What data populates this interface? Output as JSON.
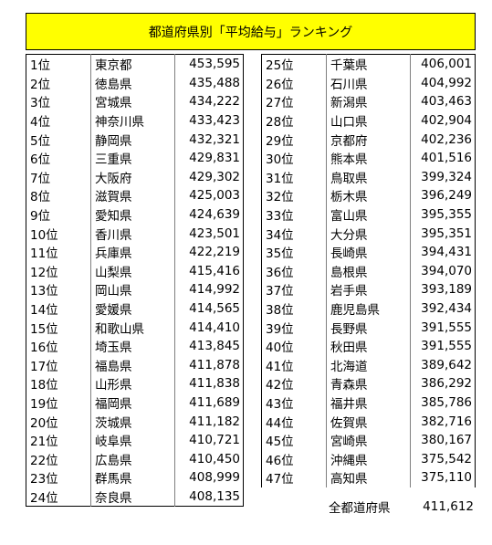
{
  "title": "都道府県別「平均給与」ランキング",
  "left_rows": [
    [
      "1位",
      "東京都",
      "453,595"
    ],
    [
      "2位",
      "徳島県",
      "435,488"
    ],
    [
      "3位",
      "宮城県",
      "434,222"
    ],
    [
      "4位",
      "神奈川県",
      "433,423"
    ],
    [
      "5位",
      "静岡県",
      "432,321"
    ],
    [
      "6位",
      "三重県",
      "429,831"
    ],
    [
      "7位",
      "大阪府",
      "429,302"
    ],
    [
      "8位",
      "滋賀県",
      "425,003"
    ],
    [
      "9位",
      "愛知県",
      "424,639"
    ],
    [
      "10位",
      "香川県",
      "423,501"
    ],
    [
      "11位",
      "兵庫県",
      "422,219"
    ],
    [
      "12位",
      "山梨県",
      "415,416"
    ],
    [
      "13位",
      "岡山県",
      "414,992"
    ],
    [
      "14位",
      "愛媛県",
      "414,565"
    ],
    [
      "15位",
      "和歌山県",
      "414,410"
    ],
    [
      "16位",
      "埼玉県",
      "413,845"
    ],
    [
      "17位",
      "福島県",
      "411,878"
    ],
    [
      "18位",
      "山形県",
      "411,838"
    ],
    [
      "19位",
      "福岡県",
      "411,689"
    ],
    [
      "20位",
      "茨城県",
      "411,182"
    ],
    [
      "21位",
      "岐阜県",
      "410,721"
    ],
    [
      "22位",
      "広島県",
      "410,450"
    ],
    [
      "23位",
      "群馬県",
      "408,999"
    ],
    [
      "24位",
      "奈良県",
      "408,135"
    ]
  ],
  "right_rows": [
    [
      "25位",
      "千葉県",
      "406,001"
    ],
    [
      "26位",
      "石川県",
      "404,992"
    ],
    [
      "27位",
      "新潟県",
      "403,463"
    ],
    [
      "28位",
      "山口県",
      "402,904"
    ],
    [
      "29位",
      "京都府",
      "402,236"
    ],
    [
      "30位",
      "熊本県",
      "401,516"
    ],
    [
      "31位",
      "鳥取県",
      "399,324"
    ],
    [
      "32位",
      "栃木県",
      "396,249"
    ],
    [
      "33位",
      "富山県",
      "395,355"
    ],
    [
      "34位",
      "大分県",
      "395,351"
    ],
    [
      "35位",
      "長崎県",
      "394,431"
    ],
    [
      "36位",
      "島根県",
      "394,070"
    ],
    [
      "37位",
      "岩手県",
      "393,189"
    ],
    [
      "38位",
      "鹿児島県",
      "392,434"
    ],
    [
      "39位",
      "長野県",
      "391,555"
    ],
    [
      "40位",
      "秋田県",
      "391,555"
    ],
    [
      "41位",
      "北海道",
      "389,642"
    ],
    [
      "42位",
      "青森県",
      "386,292"
    ],
    [
      "43位",
      "福井県",
      "385,786"
    ],
    [
      "44位",
      "佐賀県",
      "382,716"
    ],
    [
      "45位",
      "宮崎県",
      "380,167"
    ],
    [
      "46位",
      "沖縄県",
      "375,542"
    ],
    [
      "47位",
      "高知県",
      "375,110"
    ]
  ],
  "total": {
    "label": "全都道府県",
    "value": "411,612"
  },
  "colors": {
    "title_bg": "#ffff00"
  }
}
